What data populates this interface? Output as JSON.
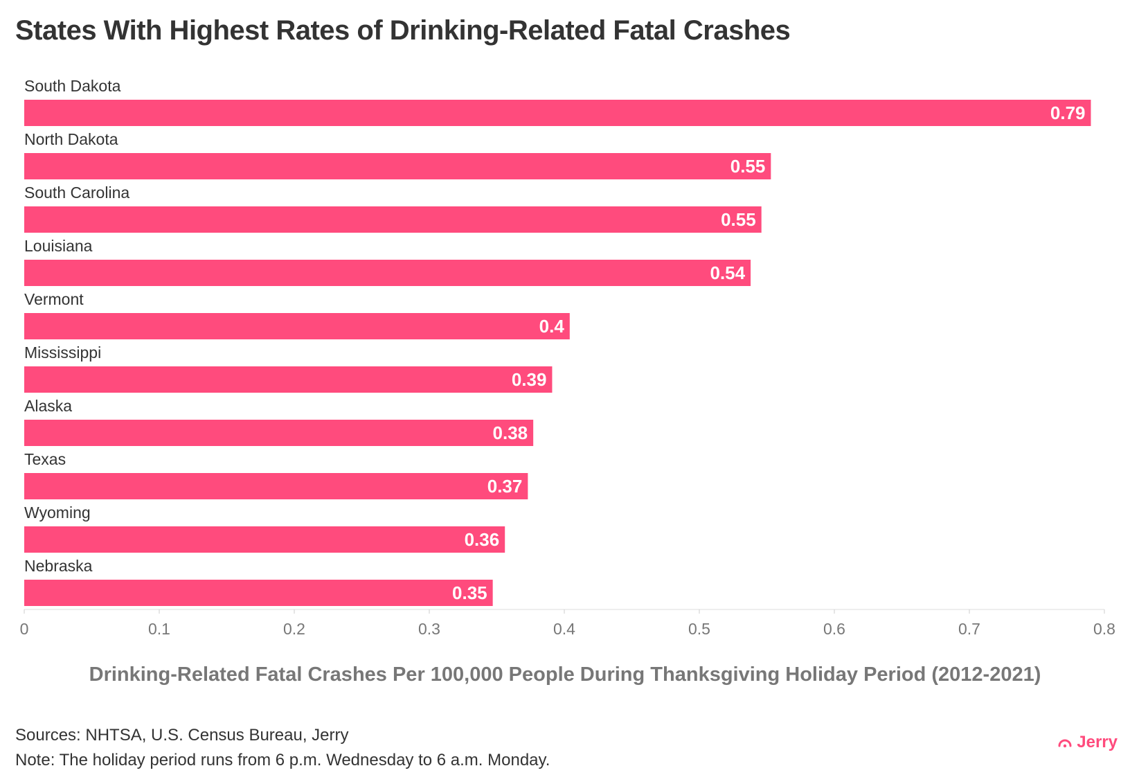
{
  "title": "States With Highest Rates of Drinking-Related Fatal Crashes",
  "chart_data": {
    "type": "bar",
    "orientation": "horizontal",
    "title": "States With Highest Rates of Drinking-Related Fatal Crashes",
    "categories": [
      "South Dakota",
      "North Dakota",
      "South Carolina",
      "Louisiana",
      "Vermont",
      "Mississippi",
      "Alaska",
      "Texas",
      "Wyoming",
      "Nebraska"
    ],
    "values": [
      0.79,
      0.55,
      0.55,
      0.54,
      0.4,
      0.39,
      0.38,
      0.37,
      0.36,
      0.35
    ],
    "bar_values": [
      0.79,
      0.553,
      0.546,
      0.538,
      0.404,
      0.391,
      0.377,
      0.373,
      0.356,
      0.347
    ],
    "xlabel": "Drinking-Related Fatal Crashes Per 100,000 People During Thanksgiving Holiday Period (2012-2021)",
    "ylabel": "",
    "xlim": [
      0,
      0.8
    ],
    "xticks": [
      "0",
      "0.1",
      "0.2",
      "0.3",
      "0.4",
      "0.5",
      "0.6",
      "0.7",
      "0.8"
    ],
    "bar_color": "#ff4b7d",
    "grid": false
  },
  "footer": {
    "source": "Sources: NHTSA, U.S. Census Bureau, Jerry",
    "note": "Note: The holiday period runs from 6 p.m. Wednesday to 6 a.m. Monday.",
    "logo_text": "Jerry",
    "logo_icon": "jerry-arc-icon",
    "logo_color": "#ff4b7d"
  }
}
